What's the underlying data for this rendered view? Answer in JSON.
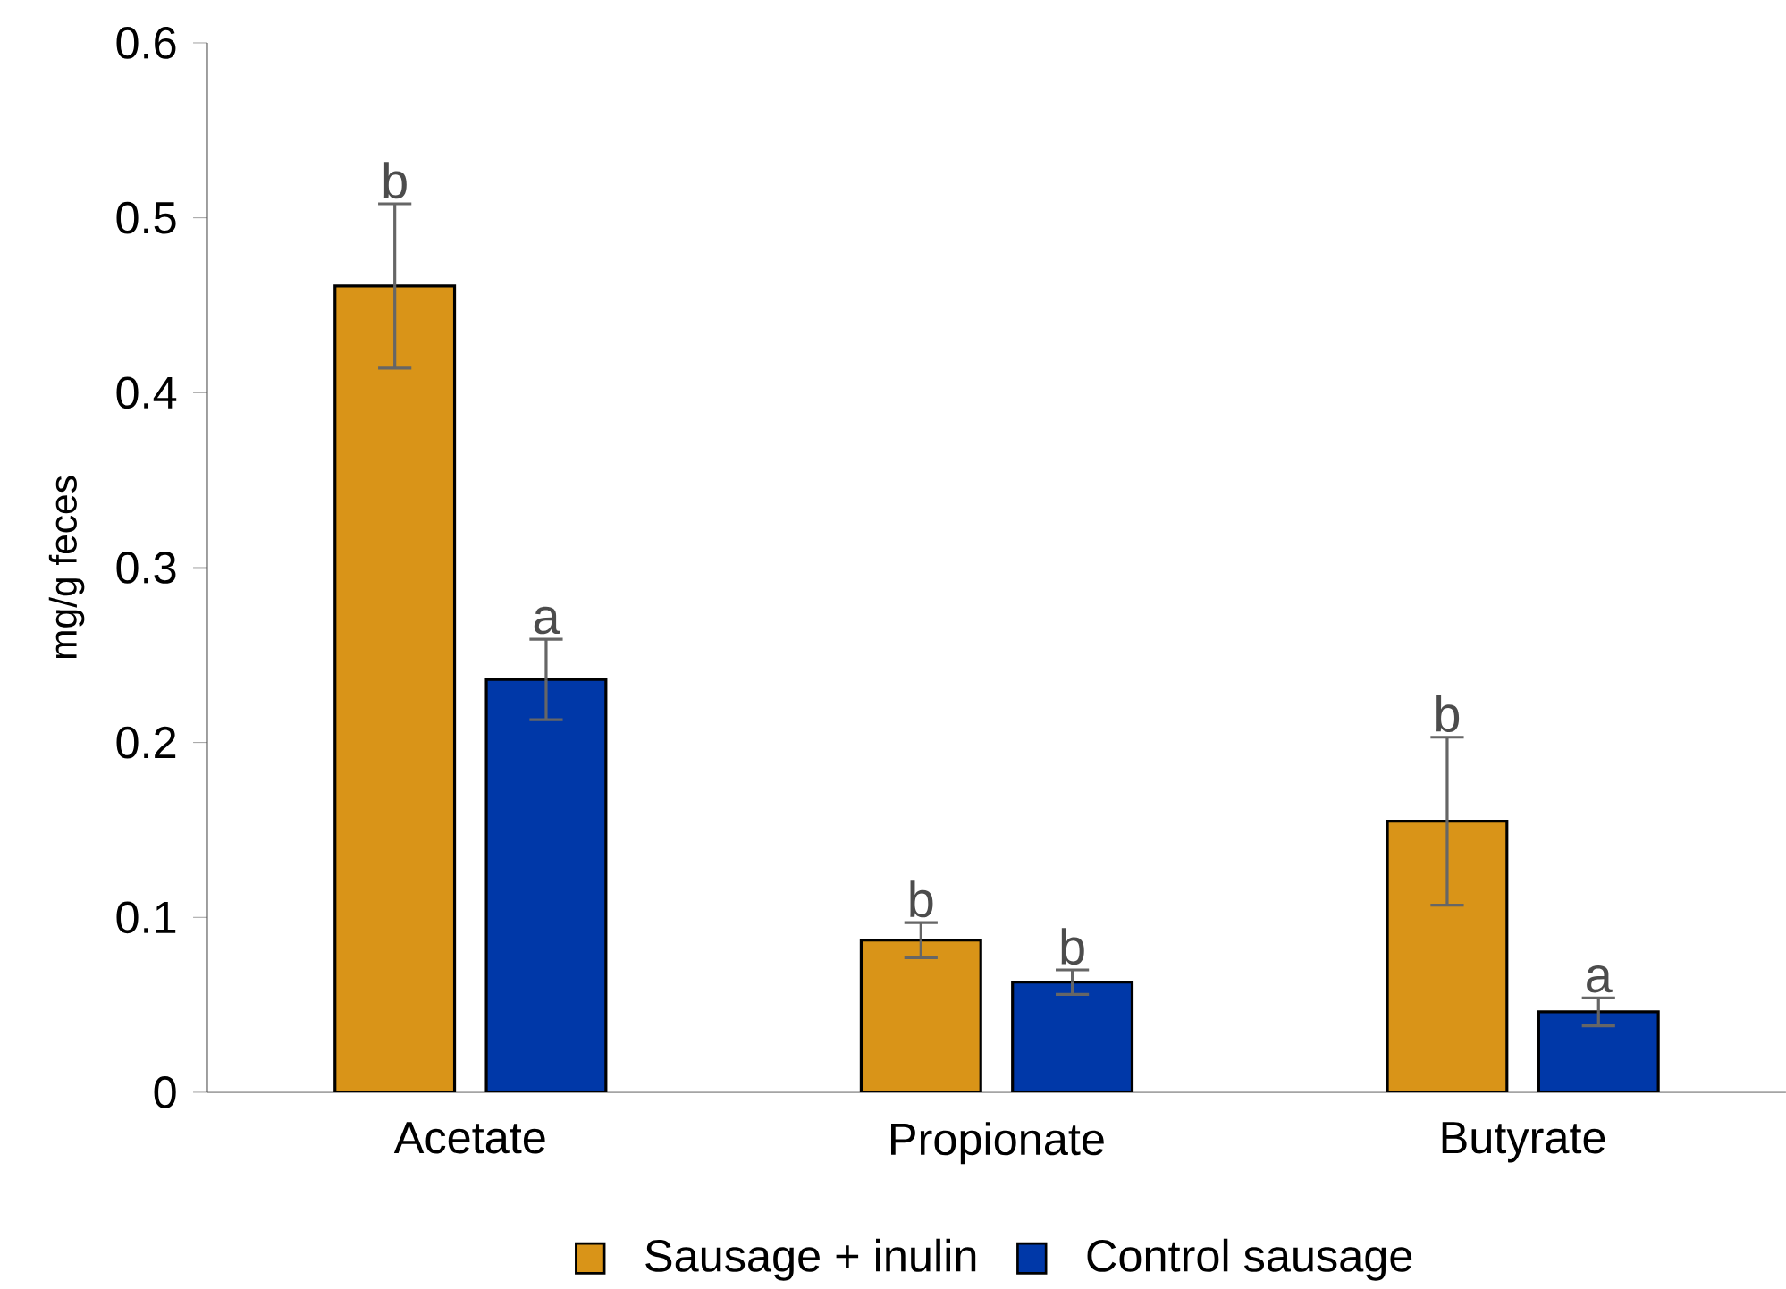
{
  "chart_data": {
    "type": "bar",
    "ylabel": "mg/g feces",
    "categories": [
      "Acetate",
      "Propionate",
      "Butyrate"
    ],
    "series": [
      {
        "name": "Sausage + inulin",
        "color": "#d99418",
        "values": [
          0.461,
          0.087,
          0.155
        ],
        "errors": [
          0.047,
          0.01,
          0.048
        ]
      },
      {
        "name": "Control sausage",
        "color": "#0038a8",
        "values": [
          0.236,
          0.063,
          0.046
        ],
        "errors": [
          0.023,
          0.007,
          0.008
        ]
      }
    ],
    "ylim": [
      0,
      0.6
    ],
    "yticks": [
      0,
      0.1,
      0.2,
      0.3,
      0.4,
      0.5,
      0.6
    ],
    "annotations": [
      "b",
      "a",
      "b",
      "b",
      "b",
      "a"
    ],
    "legend": "bottom",
    "grid": false
  }
}
